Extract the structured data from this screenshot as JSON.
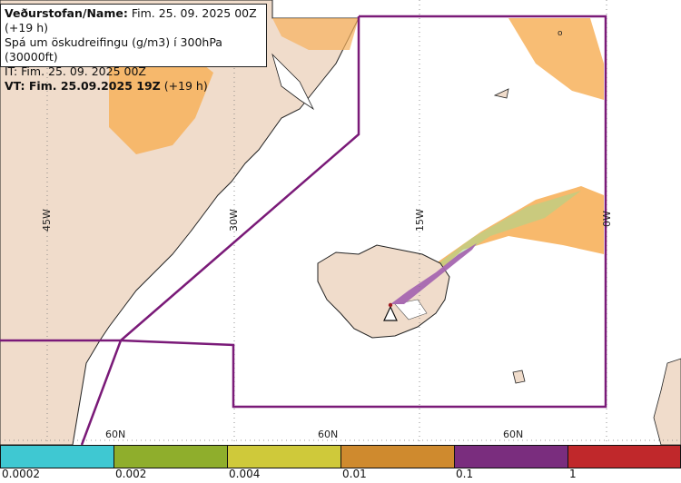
{
  "header": {
    "line1_bold": "Veðurstofan/Name:",
    "line1_rest": " Fim. 25. 09. 2025 00Z (+19 h)",
    "line2": "Spá um öskudreifingu (g/m3) í 300hPa (30000ft)",
    "line3": "IT: Fim. 25. 09. 2025 00Z",
    "line4_bold": "VT: Fim. 25.09.2025 19Z",
    "line4_rest": " (+19 h)"
  },
  "grid_labels": {
    "lon_45": "45W",
    "lon_30": "30W",
    "lon_15": "15W",
    "lon_0": "0W",
    "lat_60_a": "60N",
    "lat_60_b": "60N",
    "lat_60_c": "60N"
  },
  "marker": {
    "o_label": "o"
  },
  "legend": {
    "ticks": [
      "0.0002",
      "0.002",
      "0.004",
      "0.01",
      "0.1",
      "1"
    ],
    "colors": [
      "#3fc8d2",
      "#8fae2c",
      "#cfc93a",
      "#cf8a2e",
      "#7a2d7e",
      "#c0282b"
    ]
  },
  "colors": {
    "land": "#f0dccb",
    "sea": "#ffffff",
    "boundary": "#7a1a78",
    "ash_orange": "#f7b15c",
    "ash_purple": "#a566b0"
  }
}
